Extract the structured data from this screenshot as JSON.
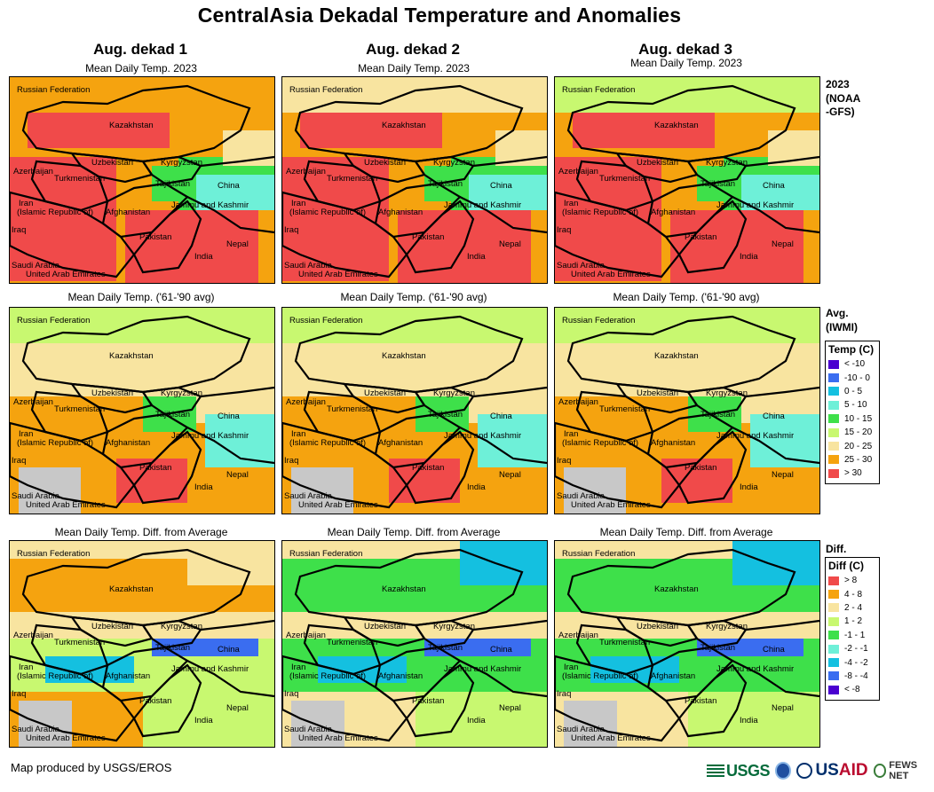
{
  "title": "CentralAsia Dekadal Temperature and Anomalies",
  "columns": [
    "Aug. dekad 1",
    "Aug. dekad 2",
    "Aug. dekad 3"
  ],
  "row_labels": {
    "current": "Mean Daily Temp. 2023",
    "average": "Mean Daily Temp. ('61-'90 avg)",
    "difference": "Mean Daily Temp. Diff. from Average"
  },
  "side_labels": {
    "current": [
      "2023",
      "(NOAA",
      "-GFS)"
    ],
    "average": [
      "Avg.",
      "(IWMI)"
    ],
    "difference": [
      "Diff."
    ]
  },
  "map_places": [
    "Russian Federation",
    "Kazakhstan",
    "Uzbekistan",
    "Kyrgyzstan",
    "Azerbaijan",
    "Turkmenistan",
    "Tajikistan",
    "China",
    "Iran",
    "(Islamic Republic of)",
    "Afghanistan",
    "Jammu and Kashmir",
    "Iraq",
    "Pakistan",
    "Nepal",
    "India",
    "Saudi Arabia",
    "United Arab Emirates"
  ],
  "temp_legend": {
    "title": "Temp (C)",
    "items": [
      {
        "label": "< -10",
        "color": "#4a00d0"
      },
      {
        "label": "-10 - 0",
        "color": "#3a6df0"
      },
      {
        "label": "0 - 5",
        "color": "#14c0e0"
      },
      {
        "label": "5 - 10",
        "color": "#6ef0d8"
      },
      {
        "label": "10 - 15",
        "color": "#3ee04a"
      },
      {
        "label": "15 - 20",
        "color": "#c8f870"
      },
      {
        "label": "20 - 25",
        "color": "#f8e4a0"
      },
      {
        "label": "25 - 30",
        "color": "#f5a30f"
      },
      {
        "label": "> 30",
        "color": "#f04a4a"
      }
    ]
  },
  "diff_legend": {
    "title": "Diff (C)",
    "items": [
      {
        "label": "> 8",
        "color": "#f04a4a"
      },
      {
        "label": "4 - 8",
        "color": "#f5a30f"
      },
      {
        "label": "2 - 4",
        "color": "#f8e4a0"
      },
      {
        "label": "1 - 2",
        "color": "#c8f870"
      },
      {
        "label": "-1 - 1",
        "color": "#3ee04a"
      },
      {
        "label": "-2 - -1",
        "color": "#6ef0d8"
      },
      {
        "label": "-4 - -2",
        "color": "#14c0e0"
      },
      {
        "label": "-8 - -4",
        "color": "#3a6df0"
      },
      {
        "label": "< -8",
        "color": "#4a00d0"
      }
    ]
  },
  "footer": "Map produced by USGS/EROS",
  "logos": {
    "usgs": "USGS",
    "usaid_prefix": "US",
    "usaid_accent": "AID",
    "fews": "FEWS NET"
  }
}
